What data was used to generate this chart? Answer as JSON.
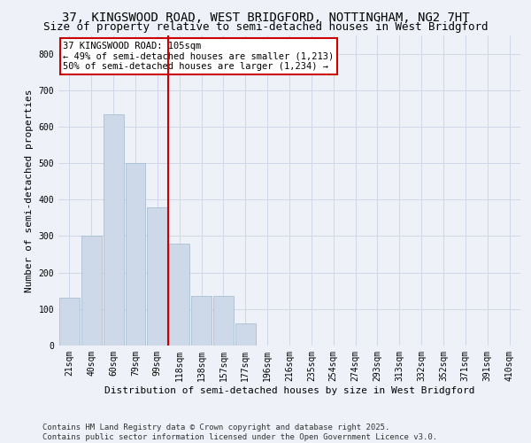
{
  "title1": "37, KINGSWOOD ROAD, WEST BRIDGFORD, NOTTINGHAM, NG2 7HT",
  "title2": "Size of property relative to semi-detached houses in West Bridgford",
  "xlabel": "Distribution of semi-detached houses by size in West Bridgford",
  "ylabel": "Number of semi-detached properties",
  "bar_labels": [
    "21sqm",
    "40sqm",
    "60sqm",
    "79sqm",
    "99sqm",
    "118sqm",
    "138sqm",
    "157sqm",
    "177sqm",
    "196sqm",
    "216sqm",
    "235sqm",
    "254sqm",
    "274sqm",
    "293sqm",
    "313sqm",
    "332sqm",
    "352sqm",
    "371sqm",
    "391sqm",
    "410sqm"
  ],
  "bar_values": [
    130,
    300,
    635,
    500,
    380,
    280,
    135,
    135,
    60,
    0,
    0,
    0,
    0,
    0,
    0,
    0,
    0,
    0,
    0,
    0,
    0
  ],
  "bar_color": "#cdd9e8",
  "bar_edge_color": "#a0b8cc",
  "grid_color": "#d0d8e8",
  "background_color": "#eef2f8",
  "vline_x": 4.5,
  "vline_color": "#cc0000",
  "annotation_title": "37 KINGSWOOD ROAD: 105sqm",
  "annotation_line2": "← 49% of semi-detached houses are smaller (1,213)",
  "annotation_line3": "50% of semi-detached houses are larger (1,234) →",
  "annotation_box_color": "#ffffff",
  "annotation_edge_color": "#cc0000",
  "ylim": [
    0,
    850
  ],
  "yticks": [
    0,
    100,
    200,
    300,
    400,
    500,
    600,
    700,
    800
  ],
  "footer": "Contains HM Land Registry data © Crown copyright and database right 2025.\nContains public sector information licensed under the Open Government Licence v3.0.",
  "title_fontsize": 10,
  "subtitle_fontsize": 9,
  "axis_label_fontsize": 8,
  "tick_fontsize": 7,
  "annotation_fontsize": 7.5,
  "footer_fontsize": 6.5
}
